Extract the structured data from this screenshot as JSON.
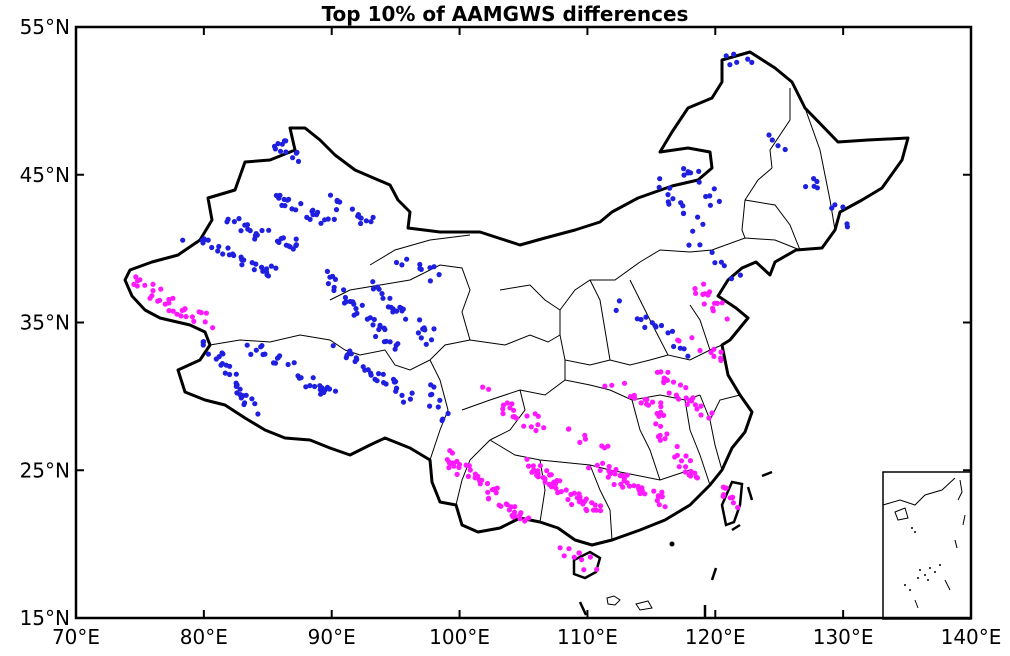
{
  "title": "Top 10% of AAMGWS differences",
  "x_axis": {
    "ticks": [
      70,
      80,
      90,
      100,
      110,
      120,
      130,
      140
    ],
    "tick_labels": [
      "70°E",
      "80°E",
      "90°E",
      "100°E",
      "110°E",
      "120°E",
      "130°E",
      "140°E"
    ],
    "range": [
      70,
      140
    ]
  },
  "y_axis": {
    "ticks": [
      15,
      25,
      35,
      45,
      55
    ],
    "tick_labels": [
      "15°N",
      "25°N",
      "35°N",
      "45°N",
      "55°N"
    ],
    "range": [
      15,
      55
    ]
  },
  "colors": {
    "series_a": "#1f1fe0",
    "series_b": "#ff19ff",
    "boundary": "#000000"
  },
  "inset_map": true,
  "chart_data": {
    "type": "scatter",
    "xlim": [
      70,
      140
    ],
    "ylim": [
      15,
      55
    ],
    "series": [
      {
        "color": "#1f1fe0",
        "clusters": [
          {
            "lon": [
              78.5,
              85.5
            ],
            "lat": [
              40.8,
              38.5
            ],
            "count": 30
          },
          {
            "lon": [
              82.0,
              88.0
            ],
            "lat": [
              41.8,
              39.8
            ],
            "count": 26
          },
          {
            "lon": [
              84.5,
              90.0
            ],
            "lat": [
              43.5,
              42.0
            ],
            "count": 22
          },
          {
            "lon": [
              85.5,
              87.3
            ],
            "lat": [
              47.5,
              46.0
            ],
            "count": 12
          },
          {
            "lon": [
              90.0,
              93.0
            ],
            "lat": [
              43.4,
              41.8
            ],
            "count": 14
          },
          {
            "lon": [
              90.0,
              95.0
            ],
            "lat": [
              38.0,
              33.2
            ],
            "count": 34
          },
          {
            "lon": [
              93.0,
              98.0
            ],
            "lat": [
              37.5,
              33.8
            ],
            "count": 26
          },
          {
            "lon": [
              80.0,
              84.0
            ],
            "lat": [
              34.0,
              29.0
            ],
            "count": 30
          },
          {
            "lon": [
              83.5,
              90.0
            ],
            "lat": [
              33.5,
              30.0
            ],
            "count": 30
          },
          {
            "lon": [
              90.5,
              96.5
            ],
            "lat": [
              33.5,
              29.5
            ],
            "count": 30
          },
          {
            "lon": [
              95.5,
              99.0
            ],
            "lat": [
              39.5,
              37.8
            ],
            "count": 10
          },
          {
            "lon": [
              97.5,
              99.5
            ],
            "lat": [
              30.5,
              28.0
            ],
            "count": 10
          },
          {
            "lon": [
              115.5,
              119.0
            ],
            "lat": [
              44.5,
              41.0
            ],
            "count": 14
          },
          {
            "lon": [
              117.5,
              120.5
            ],
            "lat": [
              45.6,
              43.0
            ],
            "count": 12
          },
          {
            "lon": [
              120.5,
              122.5
            ],
            "lat": [
              53.0,
              52.5
            ],
            "count": 6
          },
          {
            "lon": [
              112.0,
              118.0
            ],
            "lat": [
              36.5,
              33.0
            ],
            "count": 16
          },
          {
            "lon": [
              118.0,
              122.0
            ],
            "lat": [
              40.5,
              38.0
            ],
            "count": 8
          },
          {
            "lon": [
              123.5,
              131.0
            ],
            "lat": [
              48.0,
              41.5
            ],
            "count": 14
          }
        ]
      },
      {
        "color": "#ff19ff",
        "clusters": [
          {
            "lon": [
              74.5,
              79.0
            ],
            "lat": [
              38.0,
              35.3
            ],
            "count": 26
          },
          {
            "lon": [
              79.0,
              80.5
            ],
            "lat": [
              35.5,
              35.0
            ],
            "count": 6
          },
          {
            "lon": [
              99.0,
              105.5
            ],
            "lat": [
              26.0,
              21.5
            ],
            "count": 48
          },
          {
            "lon": [
              105.0,
              111.0
            ],
            "lat": [
              25.5,
              22.0
            ],
            "count": 50
          },
          {
            "lon": [
              110.5,
              116.5
            ],
            "lat": [
              25.5,
              22.5
            ],
            "count": 38
          },
          {
            "lon": [
              115.5,
              118.5
            ],
            "lat": [
              28.0,
              24.5
            ],
            "count": 22
          },
          {
            "lon": [
              115.5,
              119.5
            ],
            "lat": [
              31.5,
              28.8
            ],
            "count": 26
          },
          {
            "lon": [
              111.0,
              116.0
            ],
            "lat": [
              31.2,
              29.0
            ],
            "count": 18
          },
          {
            "lon": [
              118.5,
              121.5
            ],
            "lat": [
              37.5,
              34.8
            ],
            "count": 14
          },
          {
            "lon": [
              108.0,
              110.5
            ],
            "lat": [
              19.8,
              18.5
            ],
            "count": 10
          },
          {
            "lon": [
              102.0,
              105.0
            ],
            "lat": [
              30.5,
              28.0
            ],
            "count": 12
          },
          {
            "lon": [
              117.0,
              120.5
            ],
            "lat": [
              34.0,
              32.5
            ],
            "count": 10
          },
          {
            "lon": [
              120.2,
              121.8
            ],
            "lat": [
              25.0,
              22.5
            ],
            "count": 10
          },
          {
            "lon": [
              105.0,
              112.0
            ],
            "lat": [
              28.5,
              26.5
            ],
            "count": 16
          }
        ]
      }
    ]
  }
}
